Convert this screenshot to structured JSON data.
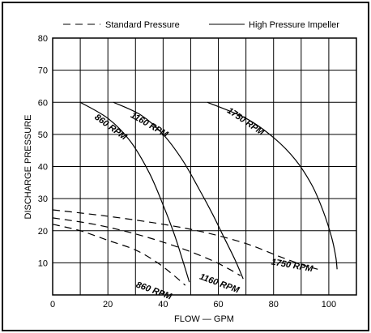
{
  "chart_data": {
    "type": "line",
    "title": "",
    "xlabel": "FLOW — GPM",
    "ylabel": "DISCHARGE PRESSURE",
    "xlim": [
      0,
      110
    ],
    "ylim": [
      0,
      80
    ],
    "x_ticks": [
      0,
      20,
      40,
      60,
      80,
      100
    ],
    "y_ticks": [
      10,
      20,
      30,
      40,
      50,
      60,
      70,
      80
    ],
    "grid": true,
    "legend_position": "top",
    "legend": [
      {
        "name": "Standard Pressure",
        "style": "dashed"
      },
      {
        "name": "High Pressure Impeller",
        "style": "solid"
      }
    ],
    "series": [
      {
        "group": "High Pressure Impeller",
        "label": "860 RPM",
        "style": "solid",
        "points": [
          [
            10,
            60
          ],
          [
            20,
            55
          ],
          [
            28,
            48
          ],
          [
            35,
            38
          ],
          [
            40,
            28
          ],
          [
            44,
            19
          ],
          [
            47,
            11
          ],
          [
            49.5,
            4
          ]
        ]
      },
      {
        "group": "High Pressure Impeller",
        "label": "1160 RPM",
        "style": "solid",
        "points": [
          [
            22,
            60
          ],
          [
            32,
            56
          ],
          [
            40,
            50
          ],
          [
            47,
            42
          ],
          [
            53,
            33
          ],
          [
            58,
            25
          ],
          [
            62,
            18
          ],
          [
            66,
            11
          ],
          [
            69,
            5
          ]
        ]
      },
      {
        "group": "High Pressure Impeller",
        "label": "1750 RPM",
        "style": "solid",
        "points": [
          [
            56,
            60
          ],
          [
            70,
            55
          ],
          [
            80,
            49
          ],
          [
            88,
            42
          ],
          [
            94,
            34
          ],
          [
            98,
            26
          ],
          [
            101,
            18
          ],
          [
            102.5,
            12
          ],
          [
            103,
            8
          ]
        ]
      },
      {
        "group": "Standard Pressure",
        "label": "860 RPM",
        "style": "dashed",
        "points": [
          [
            0,
            22
          ],
          [
            10,
            20
          ],
          [
            20,
            17
          ],
          [
            30,
            14
          ],
          [
            38,
            10
          ],
          [
            44,
            6
          ],
          [
            48,
            3
          ]
        ]
      },
      {
        "group": "Standard Pressure",
        "label": "1160 RPM",
        "style": "dashed",
        "points": [
          [
            0,
            24
          ],
          [
            15,
            22
          ],
          [
            30,
            19
          ],
          [
            45,
            15
          ],
          [
            57,
            11
          ],
          [
            64,
            8
          ],
          [
            68,
            6
          ]
        ]
      },
      {
        "group": "Standard Pressure",
        "label": "1750 RPM",
        "style": "dashed",
        "points": [
          [
            0,
            26.5
          ],
          [
            20,
            24.5
          ],
          [
            40,
            22
          ],
          [
            55,
            19.5
          ],
          [
            70,
            16
          ],
          [
            82,
            12
          ],
          [
            90,
            9.5
          ],
          [
            96,
            8
          ]
        ]
      }
    ],
    "labels": [
      {
        "text": "860 RPM",
        "x": 15,
        "y": 55,
        "rotate": 36
      },
      {
        "text": "1160 RPM",
        "x": 28,
        "y": 55.5,
        "rotate": 30
      },
      {
        "text": "1750 RPM",
        "x": 63,
        "y": 57,
        "rotate": 34
      },
      {
        "text": "860 RPM",
        "x": 30,
        "y": 2.5,
        "rotate": 20
      },
      {
        "text": "1160 RPM",
        "x": 53,
        "y": 5,
        "rotate": 20
      },
      {
        "text": "1750 RPM",
        "x": 79,
        "y": 9.5,
        "rotate": 10
      }
    ]
  }
}
